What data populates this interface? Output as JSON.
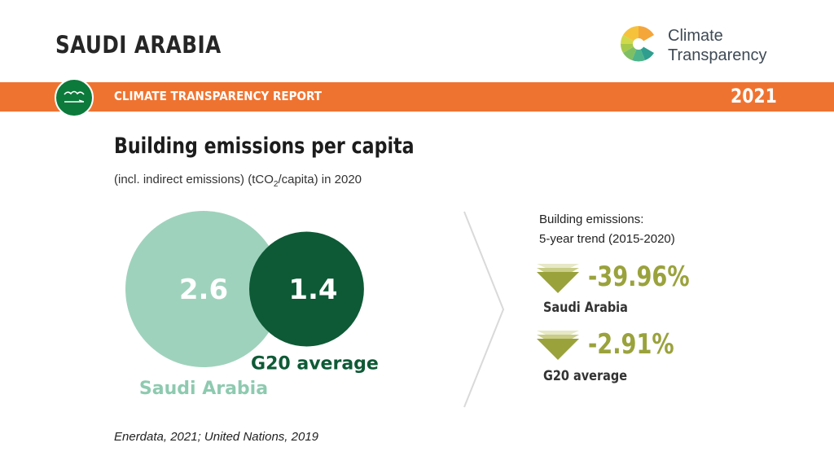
{
  "header": {
    "country": "SAUDI ARABIA",
    "logo_line1": "Climate",
    "logo_line2": "Transparency",
    "report_label": "CLIMATE TRANSPARENCY REPORT",
    "year": "2021"
  },
  "colors": {
    "banner": "#ef7330",
    "saudi_arabia": "#8ecab0",
    "g20_average": "#0e5a36",
    "trend": "#9aa23c"
  },
  "chart_data": [
    {
      "type": "bubble",
      "title": "Building emissions per capita",
      "subtitle_prefix": "(incl. indirect emissions) (tCO",
      "subtitle_sub": "2",
      "subtitle_suffix": "/capita) in 2020",
      "categories": [
        "Saudi Arabia",
        "G20 average"
      ],
      "values": [
        2.6,
        1.4
      ],
      "value_labels": [
        "2.6",
        "1.4"
      ]
    },
    {
      "type": "table",
      "title_line1": "Building emissions:",
      "title_line2": "5-year trend (2015-2020)",
      "rows": [
        {
          "name": "Saudi Arabia",
          "value": -39.96,
          "label": "-39.96%"
        },
        {
          "name": "G20 average",
          "value": -2.91,
          "label": "-2.91%"
        }
      ]
    }
  ],
  "source": "Enerdata, 2021; United Nations, 2019"
}
